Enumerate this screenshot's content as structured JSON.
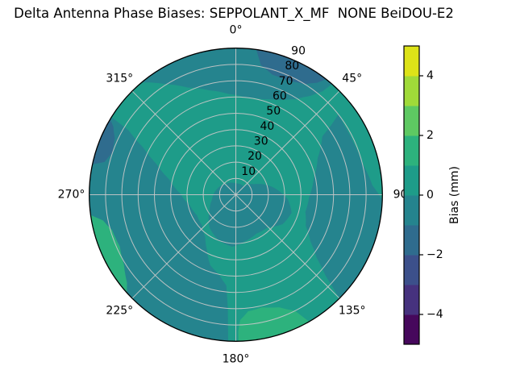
{
  "title": "Delta Antenna Phase Biases: SEPPOLANT_X_MF  NONE BeiDOU-E2",
  "chart_data": {
    "type": "polar_contour",
    "title": "Delta Antenna Phase Biases: SEPPOLANT_X_MF  NONE BeiDOU-E2",
    "angular_axis": {
      "direction": "clockwise",
      "zero_position": "top",
      "ticks": [
        {
          "az": 0,
          "label": "0°"
        },
        {
          "az": 45,
          "label": "45°"
        },
        {
          "az": 90,
          "label": "90"
        },
        {
          "az": 135,
          "label": "135°"
        },
        {
          "az": 180,
          "label": "180°"
        },
        {
          "az": 225,
          "label": "225°"
        },
        {
          "az": 270,
          "label": "270°"
        },
        {
          "az": 315,
          "label": "315°"
        }
      ]
    },
    "radial_axis": {
      "max": 90,
      "label_azimuth_deg": 22.5,
      "ticks": [
        {
          "value": 10,
          "label": "10"
        },
        {
          "value": 20,
          "label": "20"
        },
        {
          "value": 30,
          "label": "30"
        },
        {
          "value": 40,
          "label": "40"
        },
        {
          "value": 50,
          "label": "50"
        },
        {
          "value": 60,
          "label": "60"
        },
        {
          "value": 70,
          "label": "70"
        },
        {
          "value": 80,
          "label": "80"
        },
        {
          "value": 90,
          "label": "90"
        }
      ]
    },
    "levels": {
      "min": -5,
      "max": 5,
      "step": 1
    },
    "colorbar": {
      "label": "Bias (mm)",
      "range": [
        -5,
        5
      ],
      "band_colors_bottom_to_top": [
        "#46085c",
        "#46327e",
        "#3c508b",
        "#2f6c8e",
        "#25848e",
        "#1e9c89",
        "#2db27d",
        "#5ec962",
        "#a0da39",
        "#dde318"
      ],
      "ticks": [
        {
          "value": 4,
          "label": "4"
        },
        {
          "value": 2,
          "label": "2"
        },
        {
          "value": 0,
          "label": "0"
        },
        {
          "value": -2,
          "label": "−2"
        },
        {
          "value": -4,
          "label": "−4"
        }
      ]
    },
    "band_colors": {
      "m2": "#2f6c8e",
      "m1": "#25848e",
      "p0": "#1e9c89",
      "p1": "#2db27d"
    },
    "base_band": "p0",
    "regions": [
      {
        "name": "north-cap",
        "band": "m1",
        "poly": [
          [
            320,
            90
          ],
          [
            328,
            80
          ],
          [
            336,
            72
          ],
          [
            346,
            66
          ],
          [
            356,
            62
          ],
          [
            6,
            60
          ],
          [
            16,
            61
          ],
          [
            25,
            64
          ],
          [
            32,
            69
          ],
          [
            37,
            76
          ],
          [
            40,
            83
          ],
          [
            41,
            90
          ]
        ]
      },
      {
        "name": "east-band",
        "band": "m1",
        "poly": [
          [
            52,
            80
          ],
          [
            56,
            64
          ],
          [
            66,
            55
          ],
          [
            78,
            49
          ],
          [
            92,
            45
          ],
          [
            104,
            44
          ],
          [
            114,
            47
          ],
          [
            122,
            54
          ],
          [
            128,
            63
          ],
          [
            132,
            74
          ],
          [
            134,
            84
          ],
          [
            135,
            90
          ],
          [
            120,
            90
          ],
          [
            105,
            90
          ],
          [
            92,
            90
          ],
          [
            86,
            84
          ],
          [
            76,
            80
          ],
          [
            66,
            79
          ],
          [
            58,
            79
          ]
        ]
      },
      {
        "name": "center-blob",
        "band": "m1",
        "poly": [
          [
            40,
            7
          ],
          [
            60,
            13
          ],
          [
            80,
            24
          ],
          [
            95,
            32
          ],
          [
            108,
            36
          ],
          [
            122,
            34
          ],
          [
            136,
            28
          ],
          [
            152,
            27
          ],
          [
            168,
            29
          ],
          [
            184,
            32
          ],
          [
            200,
            30
          ],
          [
            218,
            26
          ],
          [
            238,
            19
          ],
          [
            258,
            15
          ],
          [
            278,
            13
          ],
          [
            298,
            11
          ],
          [
            318,
            9
          ],
          [
            338,
            8
          ],
          [
            358,
            7
          ]
        ]
      },
      {
        "name": "southwest-region",
        "band": "m1",
        "poly": [
          [
            183,
            90
          ],
          [
            184,
            70
          ],
          [
            186,
            56
          ],
          [
            192,
            50
          ],
          [
            200,
            46
          ],
          [
            208,
            38
          ],
          [
            216,
            32
          ],
          [
            228,
            28
          ],
          [
            242,
            27
          ],
          [
            257,
            29
          ],
          [
            271,
            34
          ],
          [
            283,
            42
          ],
          [
            291,
            52
          ],
          [
            297,
            64
          ],
          [
            301,
            77
          ],
          [
            302,
            90
          ],
          [
            285,
            90
          ],
          [
            265,
            90
          ],
          [
            245,
            90
          ],
          [
            225,
            90
          ],
          [
            205,
            90
          ]
        ]
      },
      {
        "name": "south-light-patch",
        "band": "p1",
        "poly": [
          [
            150,
            90
          ],
          [
            153,
            80
          ],
          [
            159,
            74
          ],
          [
            167,
            71
          ],
          [
            174,
            72
          ],
          [
            178,
            77
          ],
          [
            179,
            84
          ],
          [
            179,
            90
          ],
          [
            170,
            90
          ],
          [
            160,
            90
          ]
        ]
      },
      {
        "name": "west-light-patch",
        "band": "p1",
        "poly": [
          [
            228,
            90
          ],
          [
            231,
            86
          ],
          [
            238,
            81
          ],
          [
            246,
            78
          ],
          [
            254,
            79
          ],
          [
            259,
            83
          ],
          [
            262,
            90
          ],
          [
            250,
            90
          ],
          [
            239,
            90
          ]
        ]
      },
      {
        "name": "north-blue-patch",
        "band": "m2",
        "poly": [
          [
            8,
            90
          ],
          [
            11,
            81
          ],
          [
            17,
            77
          ],
          [
            25,
            77
          ],
          [
            32,
            80
          ],
          [
            36,
            85
          ],
          [
            38,
            90
          ],
          [
            24,
            90
          ]
        ]
      },
      {
        "name": "west-blue-patch",
        "band": "m2",
        "poly": [
          [
            282,
            90
          ],
          [
            284,
            83
          ],
          [
            289,
            80
          ],
          [
            295,
            82
          ],
          [
            299,
            86
          ],
          [
            301,
            90
          ],
          [
            292,
            90
          ]
        ]
      }
    ]
  }
}
